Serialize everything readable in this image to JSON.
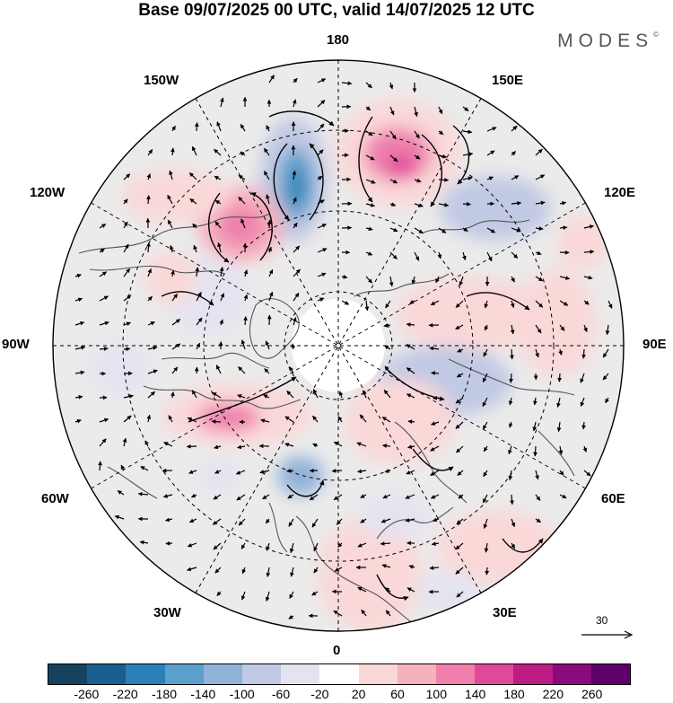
{
  "title": "Base 09/07/2025 00 UTC, valid 14/07/2025 12 UTC",
  "brand": {
    "text": "MODES",
    "mark": "©"
  },
  "longitude_labels": {
    "top": "180",
    "bottom": "0",
    "left": "90W",
    "right": "90E",
    "w150": "150W",
    "e150": "150E",
    "w120": "120W",
    "e120": "120E",
    "w60": "60W",
    "e60": "60E",
    "w30": "30W",
    "e30": "30E"
  },
  "reference_vector": {
    "label": "30"
  },
  "colorbar": {
    "ticks": [
      "-260",
      "-220",
      "-180",
      "-140",
      "-100",
      "-60",
      "-20",
      "20",
      "60",
      "100",
      "140",
      "180",
      "220",
      "260"
    ],
    "colors": [
      "#15435f",
      "#1a5f8f",
      "#2c80b8",
      "#5b9fcc",
      "#91b2d9",
      "#c1c9e4",
      "#e4e4f1",
      "#ffffff",
      "#fad8d8",
      "#f6b1bd",
      "#ef80ad",
      "#e2489a",
      "#be1c85",
      "#8b0a7c",
      "#5d0069"
    ]
  }
}
